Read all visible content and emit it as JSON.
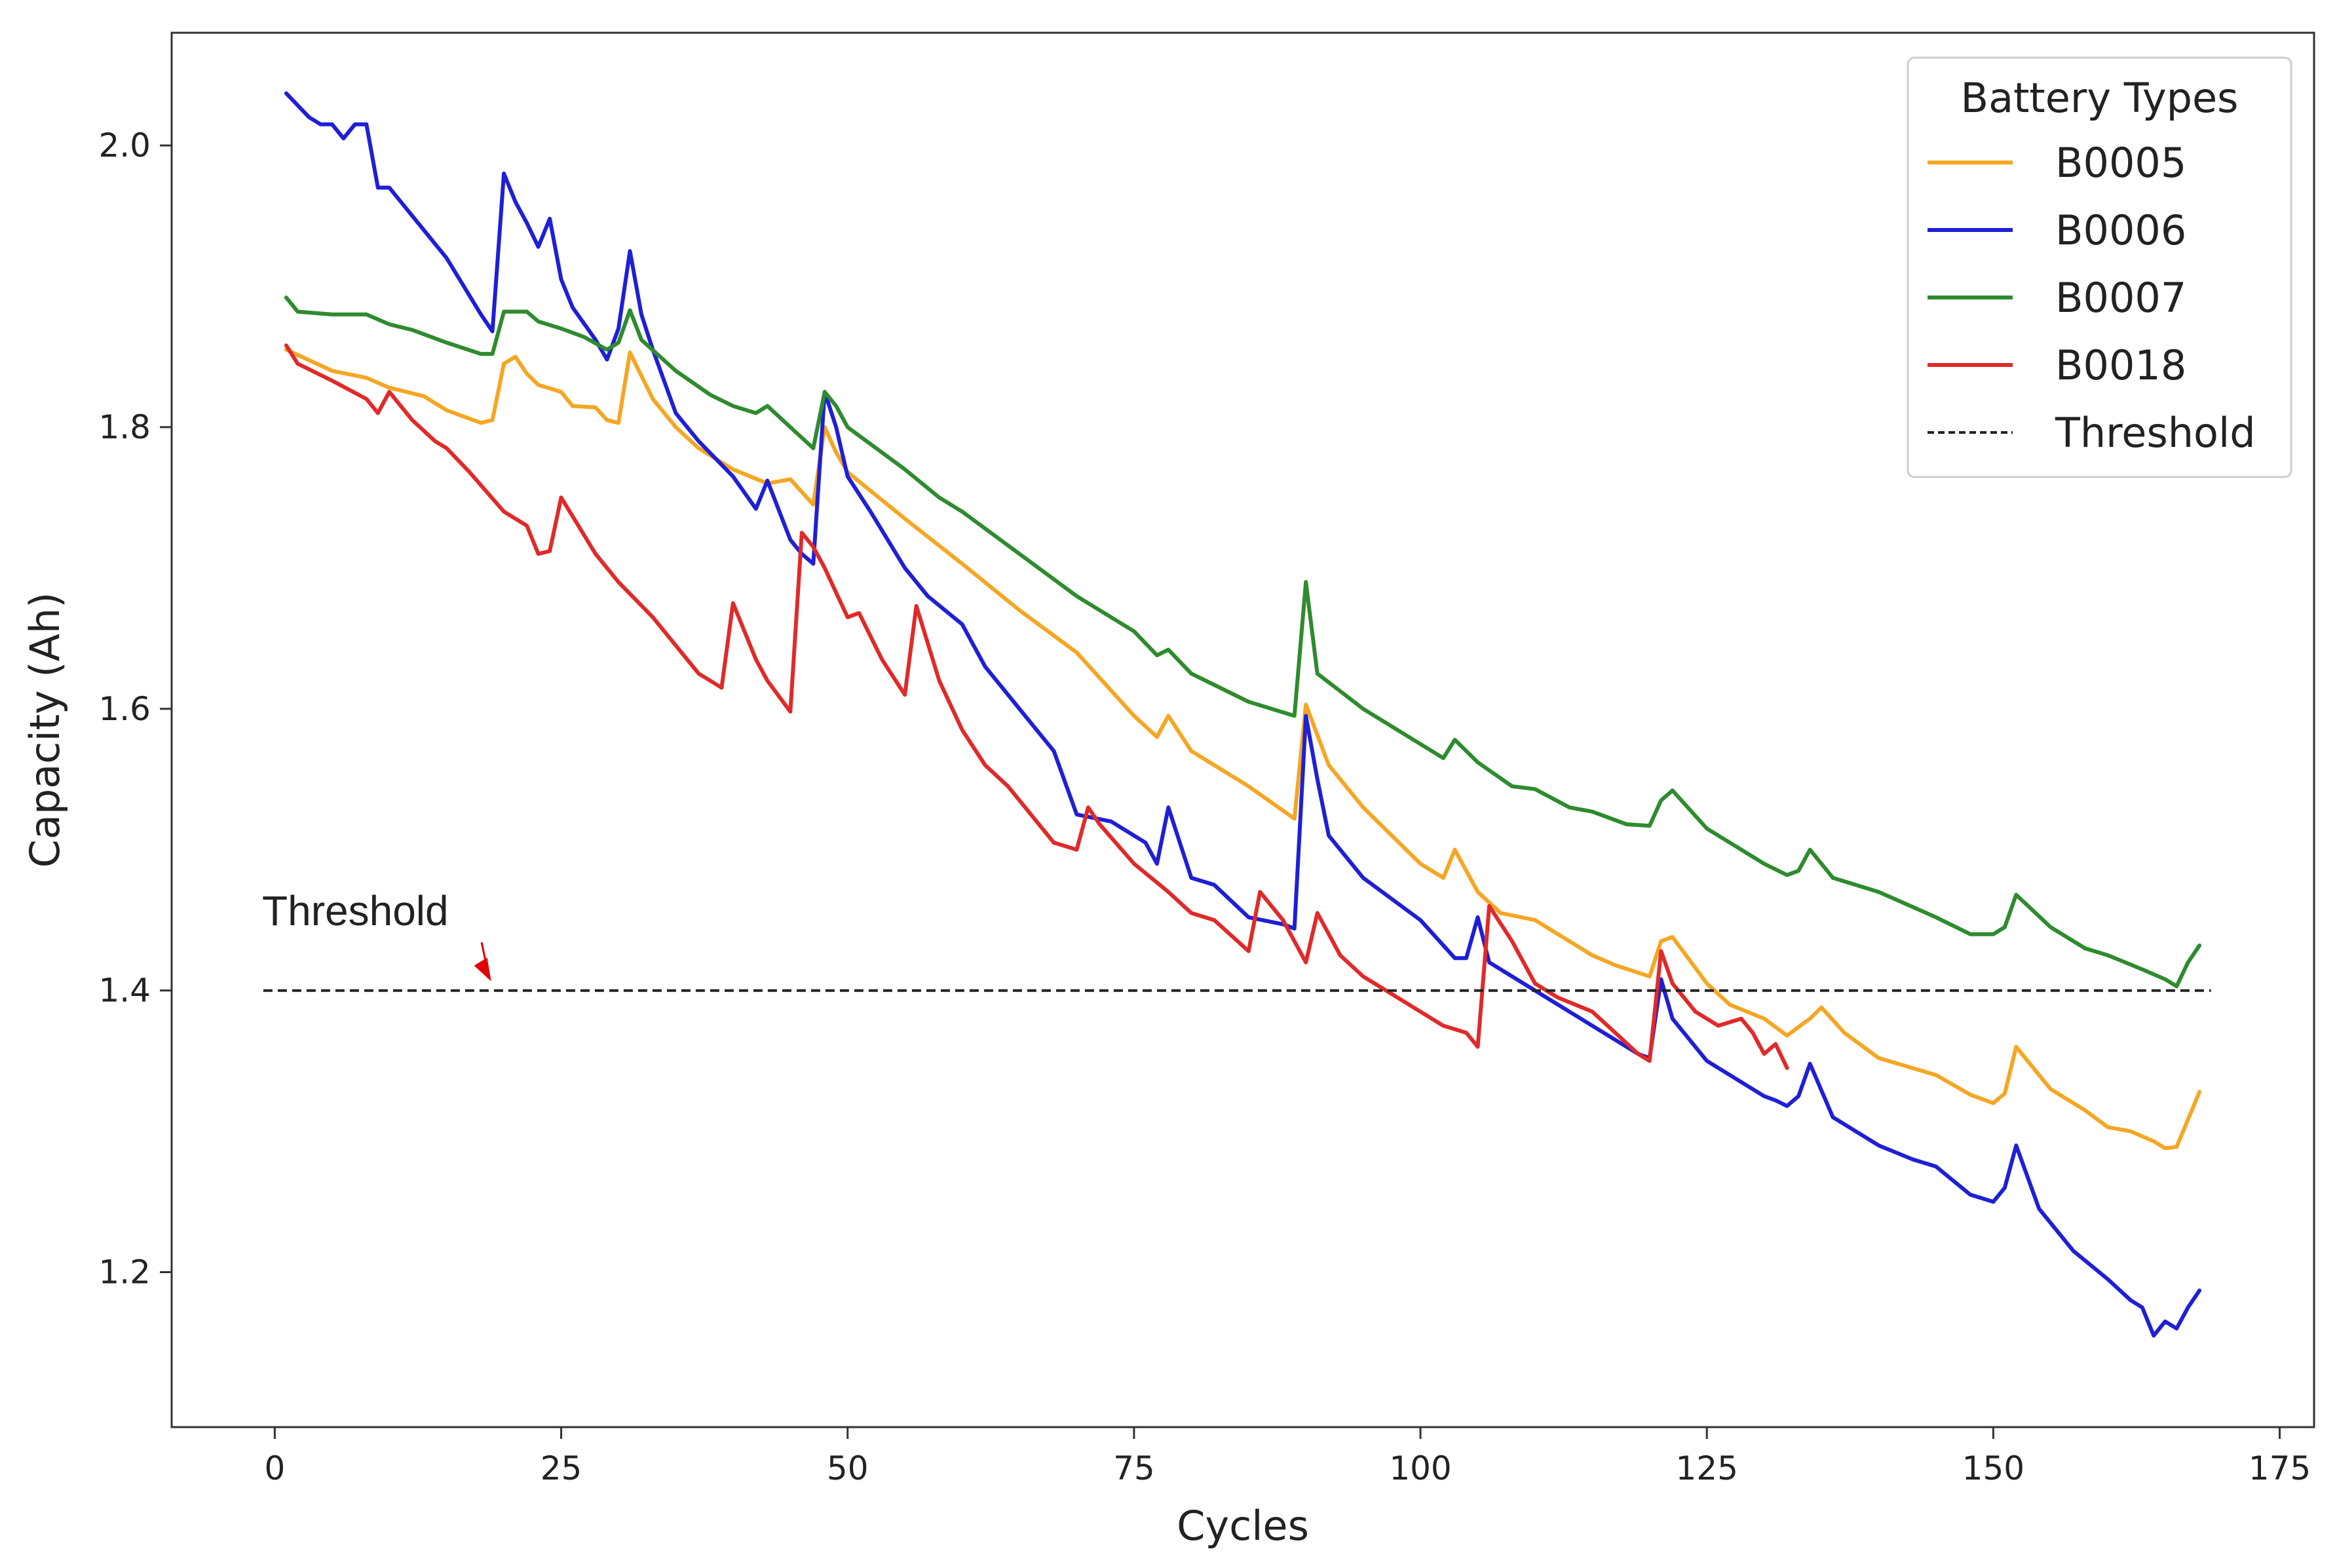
{
  "chart_data": {
    "type": "line",
    "title": "",
    "xlabel": "Cycles",
    "ylabel": "Capacity (Ah)",
    "xlim": [
      -9,
      178
    ],
    "ylim": [
      1.09,
      2.08
    ],
    "xticks": [
      0,
      25,
      50,
      75,
      100,
      125,
      150,
      175
    ],
    "yticks": [
      1.2,
      1.4,
      1.6,
      1.8,
      2.0
    ],
    "xtick_labels": [
      "0",
      "25",
      "50",
      "75",
      "100",
      "125",
      "150",
      "175"
    ],
    "ytick_labels": [
      "1.2",
      "1.4",
      "1.6",
      "1.8",
      "2.0"
    ],
    "grid": false,
    "legend": {
      "title": "Battery Types",
      "placement": "top-right",
      "entries": [
        "B0005",
        "B0006",
        "B0007",
        "B0018",
        "Threshold"
      ]
    },
    "series": [
      {
        "name": "B0005",
        "color": "#F5A623",
        "x": [
          1,
          5,
          8,
          10,
          13,
          15,
          18,
          19,
          20,
          21,
          22,
          23,
          25,
          26,
          28,
          29,
          30,
          31,
          33,
          35,
          37,
          40,
          43,
          45,
          47,
          48,
          49,
          50,
          55,
          60,
          65,
          70,
          75,
          77,
          78,
          80,
          85,
          89,
          90,
          92,
          95,
          100,
          102,
          103,
          105,
          107,
          110,
          115,
          117,
          120,
          121,
          122,
          125,
          127,
          130,
          132,
          134,
          135,
          137,
          140,
          145,
          148,
          150,
          151,
          152,
          155,
          158,
          160,
          162,
          164,
          165,
          166,
          168
        ],
        "values": [
          1.855,
          1.84,
          1.835,
          1.828,
          1.822,
          1.812,
          1.803,
          1.805,
          1.845,
          1.85,
          1.838,
          1.83,
          1.825,
          1.815,
          1.814,
          1.805,
          1.803,
          1.853,
          1.82,
          1.8,
          1.785,
          1.77,
          1.76,
          1.763,
          1.745,
          1.8,
          1.782,
          1.768,
          1.735,
          1.703,
          1.67,
          1.64,
          1.595,
          1.58,
          1.595,
          1.57,
          1.545,
          1.522,
          1.603,
          1.56,
          1.53,
          1.49,
          1.48,
          1.5,
          1.47,
          1.455,
          1.45,
          1.425,
          1.418,
          1.41,
          1.435,
          1.438,
          1.405,
          1.39,
          1.38,
          1.368,
          1.38,
          1.388,
          1.37,
          1.352,
          1.34,
          1.326,
          1.32,
          1.327,
          1.36,
          1.33,
          1.315,
          1.303,
          1.3,
          1.293,
          1.288,
          1.289,
          1.328
        ]
      },
      {
        "name": "B0006",
        "color": "#1F1FD6",
        "x": [
          1,
          3,
          4,
          5,
          6,
          7,
          8,
          9,
          10,
          12,
          15,
          18,
          19,
          20,
          21,
          22,
          23,
          24,
          25,
          26,
          28,
          29,
          30,
          31,
          32,
          33,
          35,
          37,
          40,
          42,
          43,
          45,
          46,
          47,
          48,
          49,
          50,
          52,
          55,
          57,
          60,
          62,
          65,
          68,
          70,
          73,
          76,
          77,
          78,
          79,
          80,
          82,
          85,
          88,
          89,
          90,
          91,
          92,
          95,
          100,
          103,
          104,
          105,
          106,
          110,
          112,
          115,
          117,
          119,
          120,
          121,
          122,
          125,
          128,
          130,
          131,
          132,
          133,
          134,
          136,
          140,
          143,
          145,
          148,
          150,
          151,
          152,
          154,
          157,
          160,
          162,
          163,
          164,
          165,
          166,
          167,
          168
        ],
        "values": [
          2.037,
          2.02,
          2.015,
          2.015,
          2.005,
          2.015,
          2.015,
          1.97,
          1.97,
          1.95,
          1.92,
          1.88,
          1.868,
          1.98,
          1.96,
          1.945,
          1.928,
          1.948,
          1.905,
          1.885,
          1.862,
          1.848,
          1.87,
          1.925,
          1.88,
          1.855,
          1.81,
          1.79,
          1.765,
          1.742,
          1.762,
          1.72,
          1.71,
          1.703,
          1.825,
          1.8,
          1.765,
          1.74,
          1.7,
          1.68,
          1.66,
          1.63,
          1.6,
          1.57,
          1.525,
          1.52,
          1.505,
          1.49,
          1.53,
          1.505,
          1.48,
          1.475,
          1.452,
          1.447,
          1.444,
          1.595,
          1.55,
          1.51,
          1.48,
          1.45,
          1.423,
          1.423,
          1.452,
          1.42,
          1.4,
          1.39,
          1.375,
          1.365,
          1.355,
          1.352,
          1.408,
          1.38,
          1.35,
          1.335,
          1.325,
          1.322,
          1.318,
          1.325,
          1.348,
          1.31,
          1.29,
          1.28,
          1.275,
          1.255,
          1.25,
          1.26,
          1.29,
          1.245,
          1.215,
          1.195,
          1.18,
          1.175,
          1.155,
          1.165,
          1.16,
          1.175,
          1.187
        ]
      },
      {
        "name": "B0007",
        "color": "#2E8B2E",
        "x": [
          1,
          2,
          5,
          8,
          10,
          12,
          15,
          18,
          19,
          20,
          22,
          23,
          25,
          27,
          29,
          30,
          31,
          32,
          35,
          38,
          40,
          42,
          43,
          45,
          47,
          48,
          49,
          50,
          55,
          58,
          60,
          65,
          70,
          75,
          77,
          78,
          80,
          85,
          89,
          90,
          91,
          95,
          100,
          102,
          103,
          105,
          108,
          110,
          113,
          115,
          118,
          120,
          121,
          122,
          125,
          128,
          130,
          132,
          133,
          134,
          136,
          140,
          145,
          148,
          150,
          151,
          152,
          155,
          158,
          160,
          163,
          165,
          166,
          167,
          168
        ],
        "values": [
          1.892,
          1.882,
          1.88,
          1.88,
          1.873,
          1.869,
          1.86,
          1.852,
          1.852,
          1.882,
          1.882,
          1.875,
          1.87,
          1.864,
          1.855,
          1.86,
          1.883,
          1.862,
          1.84,
          1.823,
          1.815,
          1.81,
          1.815,
          1.8,
          1.785,
          1.825,
          1.815,
          1.8,
          1.77,
          1.75,
          1.74,
          1.71,
          1.68,
          1.655,
          1.638,
          1.642,
          1.625,
          1.605,
          1.595,
          1.69,
          1.625,
          1.6,
          1.575,
          1.565,
          1.578,
          1.562,
          1.545,
          1.543,
          1.53,
          1.527,
          1.518,
          1.517,
          1.535,
          1.542,
          1.515,
          1.5,
          1.49,
          1.482,
          1.485,
          1.5,
          1.48,
          1.47,
          1.452,
          1.44,
          1.44,
          1.445,
          1.468,
          1.445,
          1.43,
          1.425,
          1.415,
          1.408,
          1.403,
          1.42,
          1.432
        ]
      },
      {
        "name": "B0018",
        "color": "#E02A2A",
        "x": [
          1,
          2,
          5,
          8,
          9,
          10,
          12,
          14,
          15,
          17,
          20,
          22,
          23,
          24,
          25,
          28,
          30,
          33,
          35,
          37,
          39,
          40,
          42,
          43,
          45,
          46,
          47,
          48,
          50,
          51,
          53,
          55,
          56,
          58,
          60,
          62,
          64,
          66,
          68,
          70,
          71,
          72,
          75,
          78,
          80,
          82,
          85,
          86,
          88,
          90,
          91,
          93,
          95,
          97,
          100,
          102,
          104,
          105,
          106,
          108,
          110,
          112,
          115,
          117,
          119,
          120,
          121,
          122,
          124,
          126,
          128,
          129,
          130,
          131,
          132
        ],
        "values": [
          1.858,
          1.845,
          1.833,
          1.82,
          1.81,
          1.825,
          1.805,
          1.79,
          1.785,
          1.768,
          1.74,
          1.73,
          1.71,
          1.712,
          1.75,
          1.71,
          1.69,
          1.665,
          1.645,
          1.625,
          1.615,
          1.675,
          1.635,
          1.62,
          1.598,
          1.725,
          1.715,
          1.7,
          1.665,
          1.668,
          1.635,
          1.61,
          1.673,
          1.62,
          1.585,
          1.56,
          1.545,
          1.525,
          1.505,
          1.5,
          1.53,
          1.518,
          1.49,
          1.47,
          1.455,
          1.45,
          1.428,
          1.47,
          1.45,
          1.42,
          1.455,
          1.425,
          1.41,
          1.4,
          1.385,
          1.375,
          1.37,
          1.36,
          1.46,
          1.435,
          1.405,
          1.395,
          1.385,
          1.37,
          1.355,
          1.35,
          1.428,
          1.405,
          1.385,
          1.375,
          1.38,
          1.37,
          1.355,
          1.362,
          1.345
        ]
      },
      {
        "name": "Threshold",
        "color": "#222222",
        "dashed": true,
        "x": [
          -1,
          169
        ],
        "values": [
          1.4,
          1.4
        ]
      }
    ],
    "annotations": [
      {
        "text": "Threshold",
        "x": 19,
        "y": 1.4,
        "arrow_color": "#E00000"
      }
    ]
  }
}
